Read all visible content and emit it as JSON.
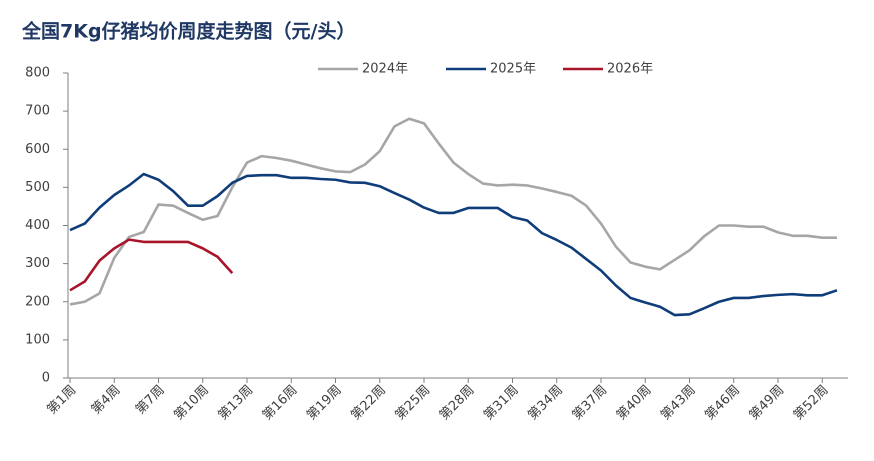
{
  "chart_data": {
    "type": "line",
    "title": "全国7Kg仔猪均价周度走势图（元/头）",
    "categories": [
      "第1周",
      null,
      null,
      "第4周",
      null,
      null,
      "第7周",
      null,
      null,
      "第10周",
      null,
      null,
      "第13周",
      null,
      null,
      "第16周",
      null,
      null,
      "第19周",
      null,
      null,
      "第22周",
      null,
      null,
      "第25周",
      null,
      null,
      "第28周",
      null,
      null,
      "第31周",
      null,
      null,
      "第34周",
      null,
      null,
      "第37周",
      null,
      null,
      "第40周",
      null,
      null,
      "第43周",
      null,
      null,
      "第46周",
      null,
      null,
      "第49周",
      null,
      null,
      "第52周",
      null
    ],
    "series": [
      {
        "name": "2024年",
        "color": "#a6a6a6",
        "values": [
          193,
          200,
          222,
          315,
          370,
          383,
          455,
          452,
          433,
          415,
          425,
          500,
          565,
          582,
          577,
          570,
          560,
          550,
          542,
          540,
          560,
          595,
          660,
          680,
          668,
          615,
          565,
          535,
          510,
          505,
          507,
          505,
          497,
          488,
          478,
          452,
          405,
          345,
          303,
          292,
          285,
          310,
          335,
          372,
          400,
          400,
          397,
          397,
          382,
          373,
          373,
          368,
          368
        ]
      },
      {
        "name": "2025年",
        "color": "#0e3d7a",
        "values": [
          388,
          405,
          447,
          480,
          505,
          535,
          520,
          490,
          452,
          452,
          477,
          512,
          530,
          532,
          532,
          525,
          525,
          522,
          520,
          513,
          512,
          503,
          485,
          468,
          447,
          433,
          433,
          446,
          446,
          446,
          422,
          413,
          380,
          362,
          342,
          312,
          282,
          243,
          210,
          198,
          187,
          165,
          167,
          183,
          200,
          210,
          210,
          215,
          218,
          220,
          217,
          217,
          230
        ]
      },
      {
        "name": "2026年",
        "color": "#a8142a",
        "values": [
          230,
          253,
          308,
          340,
          363,
          357,
          357,
          357,
          357,
          340,
          318,
          275,
          null,
          null,
          null,
          null,
          null,
          null,
          null,
          null,
          null,
          null,
          null,
          null,
          null,
          null,
          null,
          null,
          null,
          null,
          null,
          null,
          null,
          null,
          null,
          null,
          null,
          null,
          null,
          null,
          null,
          null,
          null,
          null,
          null,
          null,
          null,
          null,
          null,
          null,
          null,
          null,
          null
        ]
      }
    ],
    "ylim": [
      0,
      800
    ],
    "yticks": [
      0,
      100,
      200,
      300,
      400,
      500,
      600,
      700,
      800
    ],
    "legend": "top"
  }
}
